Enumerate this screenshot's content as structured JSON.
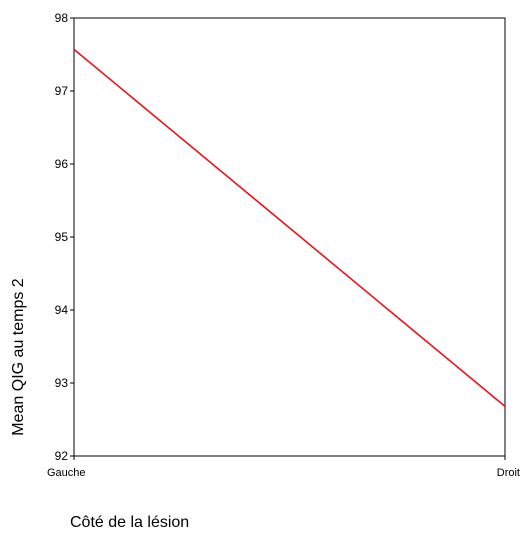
{
  "chart_data": {
    "type": "line",
    "title": "",
    "xlabel": "Côté de la lésion",
    "ylabel": "Mean QIG au temps 2",
    "categories": [
      "Gauche",
      "Droit"
    ],
    "series": [
      {
        "values": [
          97.57,
          92.68
        ],
        "color": "#e8141c"
      }
    ],
    "ylim": [
      92,
      98
    ],
    "yticks": [
      92,
      93,
      94,
      95,
      96,
      97,
      98
    ],
    "grid": false,
    "legend": "none"
  }
}
